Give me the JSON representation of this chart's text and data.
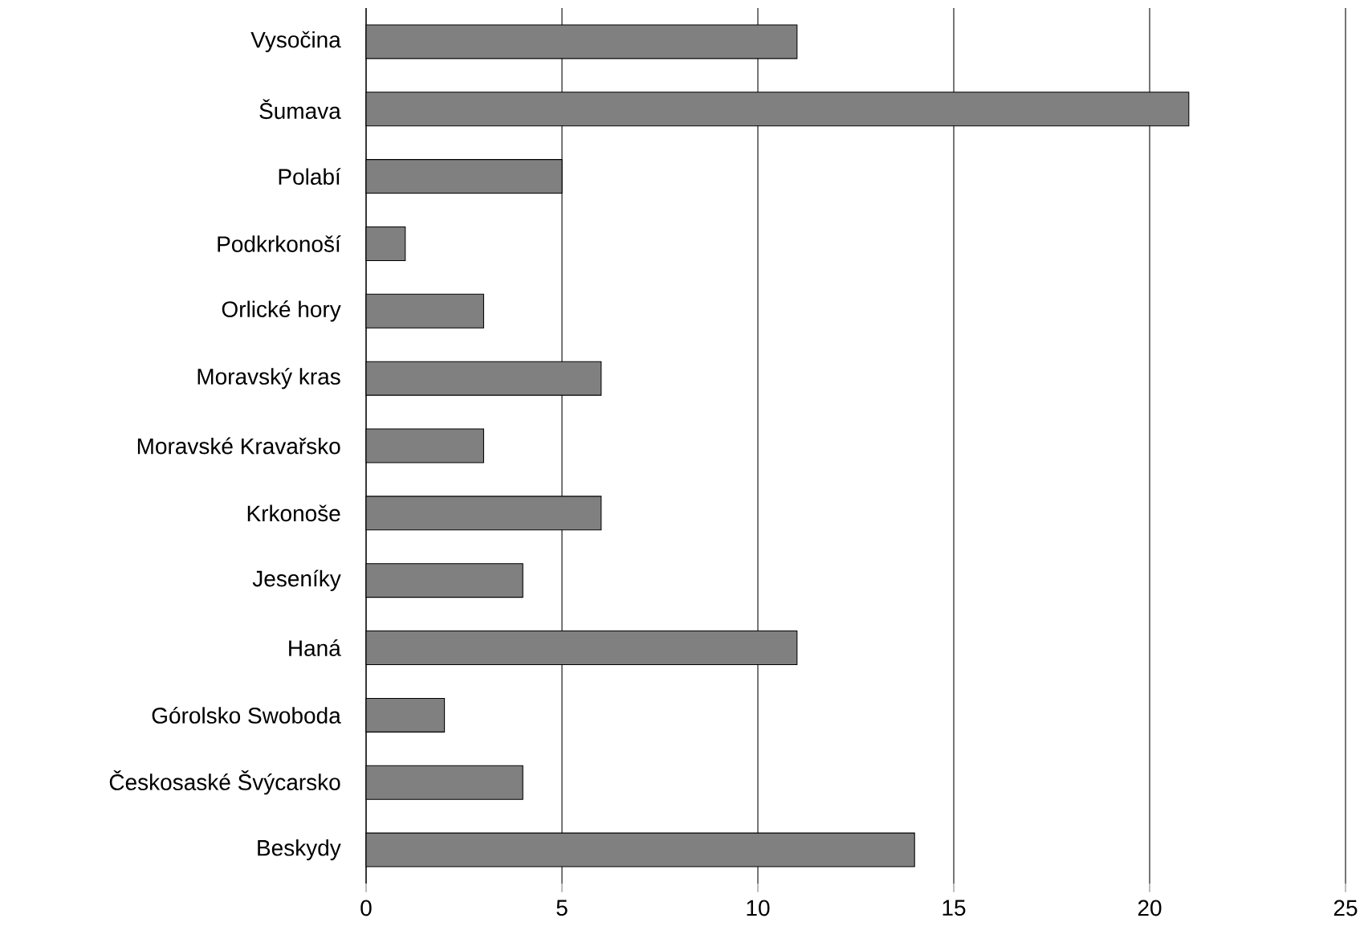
{
  "chart_data": {
    "type": "bar",
    "orientation": "horizontal",
    "categories": [
      "Vysočina",
      "Šumava",
      "Polabí",
      "Podkrkonoší",
      "Orlické hory",
      "Moravský kras",
      "Moravské Kravařsko",
      "Krkonoše",
      "Jeseníky",
      "Haná",
      "Górolsko Swoboda",
      "Českosaské Švýcarsko",
      "Beskydy"
    ],
    "values": [
      11,
      21,
      5,
      1,
      3,
      6,
      3,
      6,
      4,
      11,
      2,
      4,
      14
    ],
    "color": "#808080",
    "xlim": [
      0,
      25
    ],
    "xticks": [
      0,
      5,
      10,
      15,
      20,
      25
    ],
    "grid": "x"
  }
}
